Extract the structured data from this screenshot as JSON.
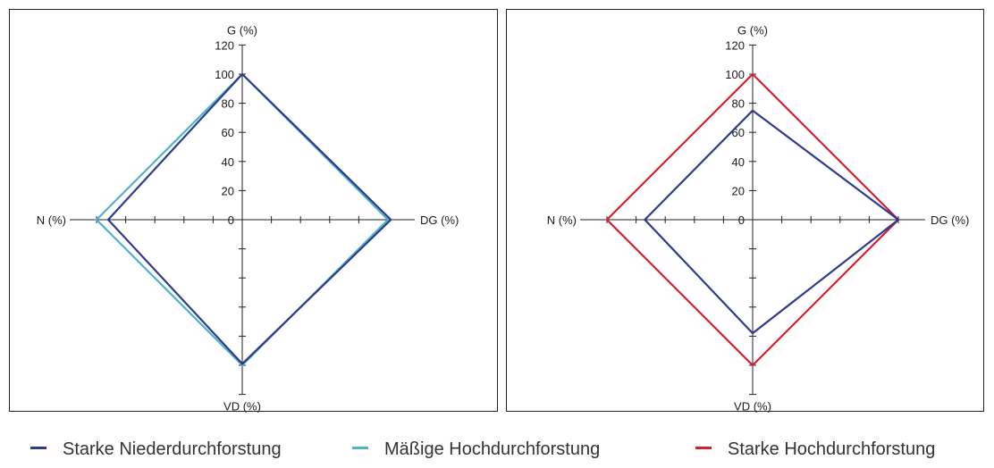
{
  "chart_data": [
    {
      "type": "radar",
      "axes": {
        "top": "G (%)",
        "right": "DG (%)",
        "bottom": "VD (%)",
        "left": "N (%)"
      },
      "ylim": [
        0,
        120
      ],
      "tick_labels": [
        "0",
        "20",
        "40",
        "60",
        "80",
        "100",
        "120"
      ],
      "series": [
        {
          "name": "Mäßige Hochdurchforstung",
          "color": "#4fb3c8",
          "values": {
            "top": 100,
            "right": 100,
            "bottom": 100,
            "left": 100
          }
        },
        {
          "name": "Starke Niederdurchforstung",
          "color": "#2e3a8c",
          "values": {
            "top": 100,
            "right": 102,
            "bottom": 99,
            "left": 92
          }
        }
      ]
    },
    {
      "type": "radar",
      "axes": {
        "top": "G (%)",
        "right": "DG (%)",
        "bottom": "VD (%)",
        "left": "N (%)"
      },
      "ylim": [
        0,
        120
      ],
      "tick_labels": [
        "0",
        "20",
        "40",
        "60",
        "80",
        "100",
        "120"
      ],
      "series": [
        {
          "name": "Starke Hochdurchforstung",
          "color": "#d62030",
          "values": {
            "top": 100,
            "right": 100,
            "bottom": 100,
            "left": 100
          }
        },
        {
          "name": "Starke Niederdurchforstung",
          "color": "#2e3a8c",
          "values": {
            "top": 75,
            "right": 100,
            "bottom": 78,
            "left": 74
          }
        }
      ]
    }
  ],
  "legend": [
    {
      "label": "Starke Niederdurchforstung",
      "color": "#2e3a8c"
    },
    {
      "label": "Mäßige Hochdurchforstung",
      "color": "#4fb3c8"
    },
    {
      "label": "Starke Hochdurchforstung",
      "color": "#d62030"
    }
  ]
}
